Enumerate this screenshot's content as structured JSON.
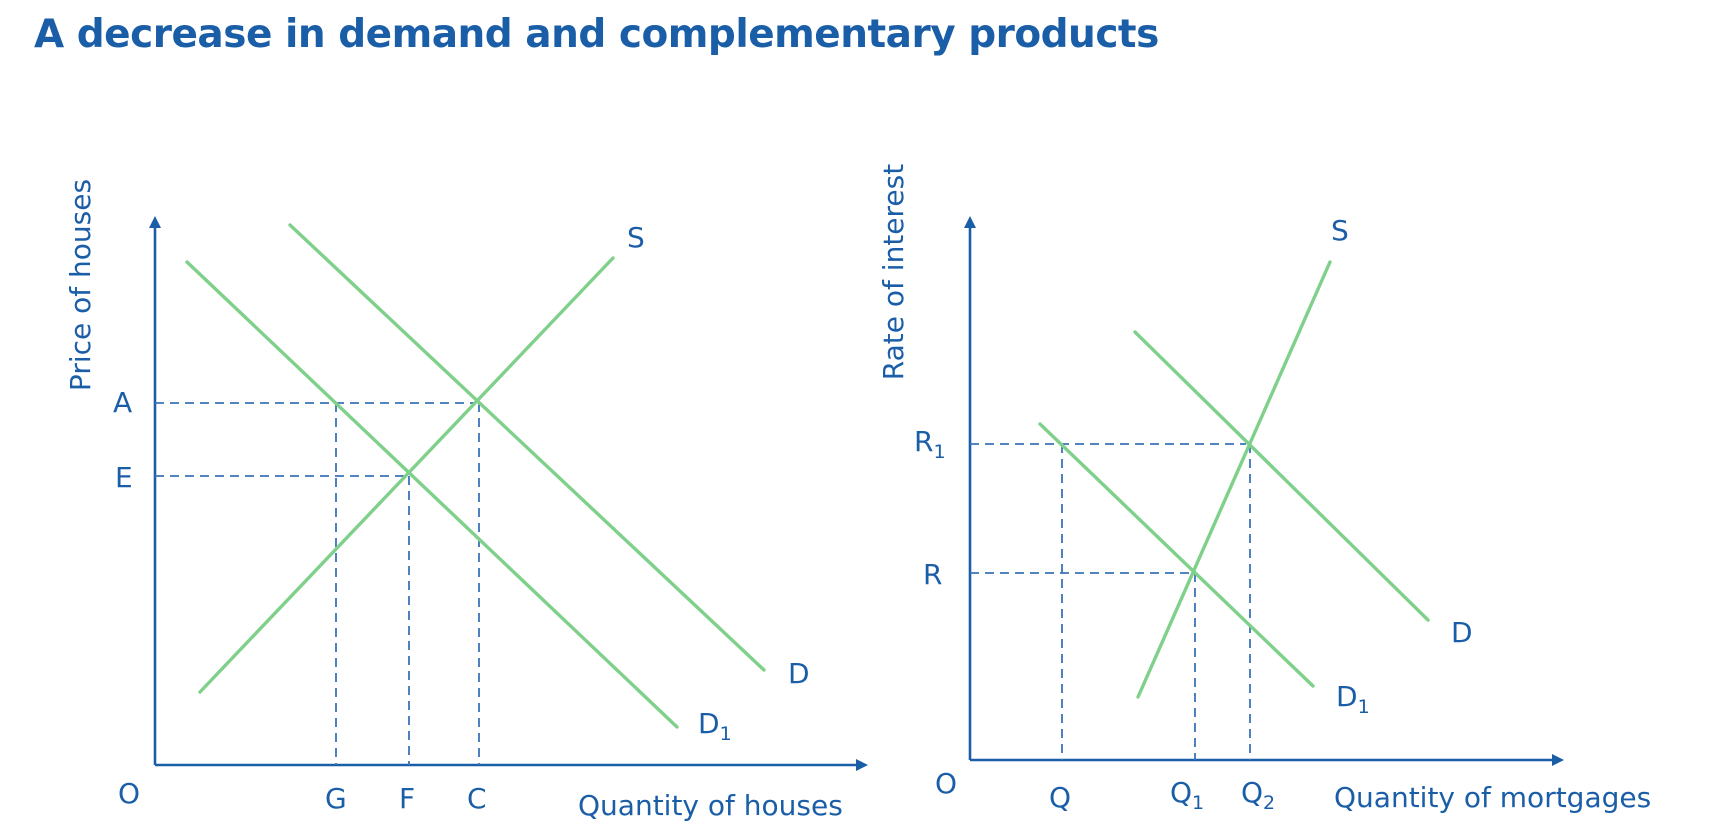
{
  "title": "A decrease in demand and complementary products",
  "colors": {
    "title": "#1b5ea8",
    "axis": "#1b5ea8",
    "curve": "#7fd08a"
  },
  "left_diagram": {
    "y_axis_label": "Price of houses",
    "x_axis_label": "Quantity of houses",
    "origin": "O",
    "price_labels": {
      "high": "A",
      "low": "E"
    },
    "quantity_labels": {
      "q1": "G",
      "q2": "F",
      "q3": "C"
    },
    "curves": {
      "supply": "S",
      "demand": "D",
      "new_demand": "D",
      "new_demand_sub": "1"
    }
  },
  "right_diagram": {
    "y_axis_label": "Rate of interest",
    "x_axis_label": "Quantity of mortgages",
    "origin": "O",
    "rate_labels": {
      "high": "R",
      "high_sub": "1",
      "low": "R"
    },
    "quantity_labels": {
      "q": "Q",
      "q1": "Q",
      "q1_sub": "1",
      "q2": "Q",
      "q2_sub": "2"
    },
    "curves": {
      "supply": "S",
      "demand": "D",
      "new_demand": "D",
      "new_demand_sub": "1"
    }
  }
}
